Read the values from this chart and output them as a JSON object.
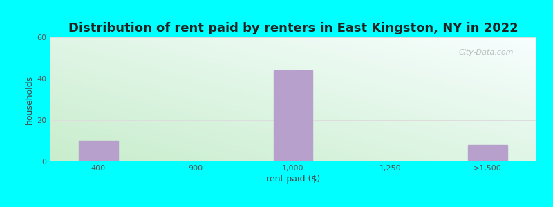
{
  "title": "Distribution of rent paid by renters in East Kingston, NY in 2022",
  "xlabel": "rent paid ($)",
  "ylabel": "households",
  "categories": [
    "400",
    "900",
    "1,000",
    "1,250",
    ">1,500"
  ],
  "values": [
    10,
    0,
    44,
    0,
    8
  ],
  "bar_color": "#b8a0cc",
  "ylim": [
    0,
    60
  ],
  "yticks": [
    0,
    20,
    40,
    60
  ],
  "background_color": "#00ffff",
  "plot_bg_color_bottom_left": "#c8edcc",
  "plot_bg_color_top_right": "#f8feff",
  "title_fontsize": 13,
  "axis_label_fontsize": 9,
  "tick_fontsize": 8,
  "bar_width": 0.4,
  "watermark": "City-Data.com",
  "grid_color": "#dddddd"
}
